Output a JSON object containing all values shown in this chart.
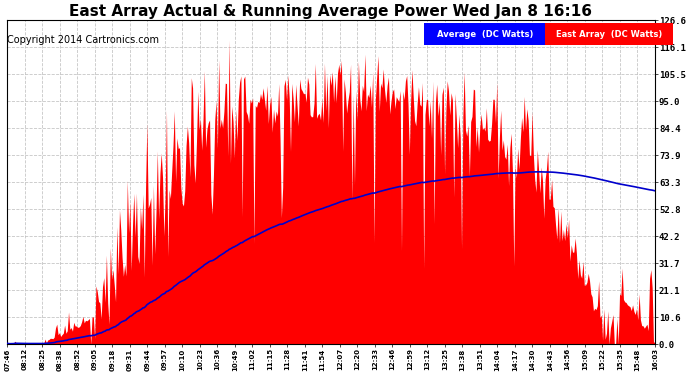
{
  "title": "East Array Actual & Running Average Power Wed Jan 8 16:16",
  "copyright": "Copyright 2014 Cartronics.com",
  "ylabel_right_ticks": [
    0.0,
    10.6,
    21.1,
    31.7,
    42.2,
    52.8,
    63.3,
    73.9,
    84.4,
    95.0,
    105.5,
    116.1,
    126.6
  ],
  "ymax": 126.6,
  "ymin": 0.0,
  "background_color": "#ffffff",
  "plot_bg_color": "#ffffff",
  "grid_color": "#c0c0c0",
  "bar_color": "#ff0000",
  "avg_line_color": "#0000cc",
  "legend_avg_bg": "#0000ff",
  "legend_east_bg": "#ff0000",
  "title_fontsize": 11,
  "copyright_fontsize": 7
}
